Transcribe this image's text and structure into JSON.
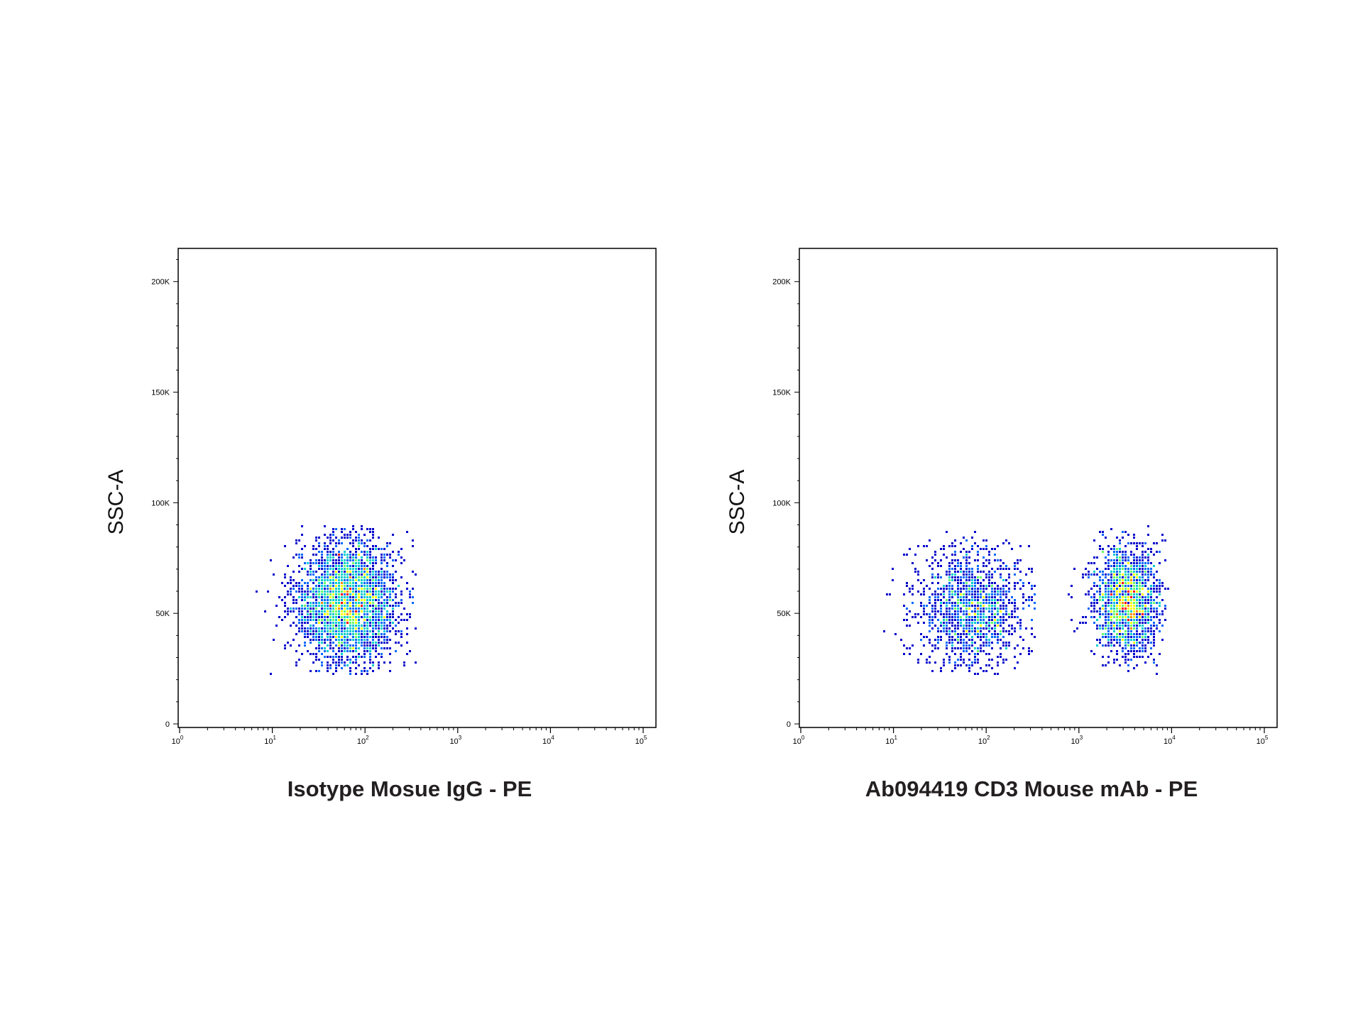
{
  "chart_data": [
    {
      "type": "scatter",
      "subtype": "flow-cytometry-density-dot-plot",
      "xlabel": "Isotype Mosue IgG - PE",
      "ylabel": "SSC-A",
      "x_scale": "log",
      "xlim": [
        1,
        100000
      ],
      "ylim": [
        0,
        215000
      ],
      "x_ticks": [
        {
          "value": 1,
          "base": "10",
          "exp": "0"
        },
        {
          "value": 10,
          "base": "10",
          "exp": "1"
        },
        {
          "value": 100,
          "base": "10",
          "exp": "2"
        },
        {
          "value": 1000,
          "base": "10",
          "exp": "3"
        },
        {
          "value": 10000,
          "base": "10",
          "exp": "4"
        },
        {
          "value": 100000,
          "base": "10",
          "exp": "5"
        }
      ],
      "y_ticks": [
        {
          "value": 0,
          "label": "0"
        },
        {
          "value": 50000,
          "label": "50K"
        },
        {
          "value": 100000,
          "label": "100K"
        },
        {
          "value": 150000,
          "label": "150K"
        },
        {
          "value": 200000,
          "label": "200K"
        }
      ],
      "populations": [
        {
          "x_center": 65,
          "x_log_spread": 0.28,
          "x_min": 5,
          "x_max": 350,
          "y_center": 55000,
          "y_spread": 14000,
          "y_min": 22000,
          "y_max": 89000,
          "density_weight": 1.0
        }
      ],
      "colors": [
        "#0000cc",
        "#0066ff",
        "#00cccc",
        "#66ff66",
        "#ffff00",
        "#ff8800",
        "#ff0000"
      ],
      "grid": false
    },
    {
      "type": "scatter",
      "subtype": "flow-cytometry-density-dot-plot",
      "xlabel": "Ab094419 CD3 Mouse mAb - PE",
      "ylabel": "SSC-A",
      "x_scale": "log",
      "xlim": [
        1,
        100000
      ],
      "ylim": [
        0,
        215000
      ],
      "x_ticks": [
        {
          "value": 1,
          "base": "10",
          "exp": "0"
        },
        {
          "value": 10,
          "base": "10",
          "exp": "1"
        },
        {
          "value": 100,
          "base": "10",
          "exp": "2"
        },
        {
          "value": 1000,
          "base": "10",
          "exp": "3"
        },
        {
          "value": 10000,
          "base": "10",
          "exp": "4"
        },
        {
          "value": 100000,
          "base": "10",
          "exp": "5"
        }
      ],
      "y_ticks": [
        {
          "value": 0,
          "label": "0"
        },
        {
          "value": 50000,
          "label": "50K"
        },
        {
          "value": 100000,
          "label": "100K"
        },
        {
          "value": 150000,
          "label": "150K"
        },
        {
          "value": 200000,
          "label": "200K"
        }
      ],
      "populations": [
        {
          "x_center": 70,
          "x_log_spread": 0.3,
          "x_min": 5,
          "x_max": 350,
          "y_center": 52000,
          "y_spread": 14000,
          "y_min": 22000,
          "y_max": 89000,
          "density_weight": 0.45
        },
        {
          "x_center": 3300,
          "x_log_spread": 0.18,
          "x_min": 500,
          "x_max": 9000,
          "y_center": 55000,
          "y_spread": 13000,
          "y_min": 22000,
          "y_max": 89000,
          "density_weight": 0.55
        }
      ],
      "colors": [
        "#0000cc",
        "#0066ff",
        "#00cccc",
        "#66ff66",
        "#ffff00",
        "#ff8800",
        "#ff0000"
      ],
      "grid": false
    }
  ]
}
